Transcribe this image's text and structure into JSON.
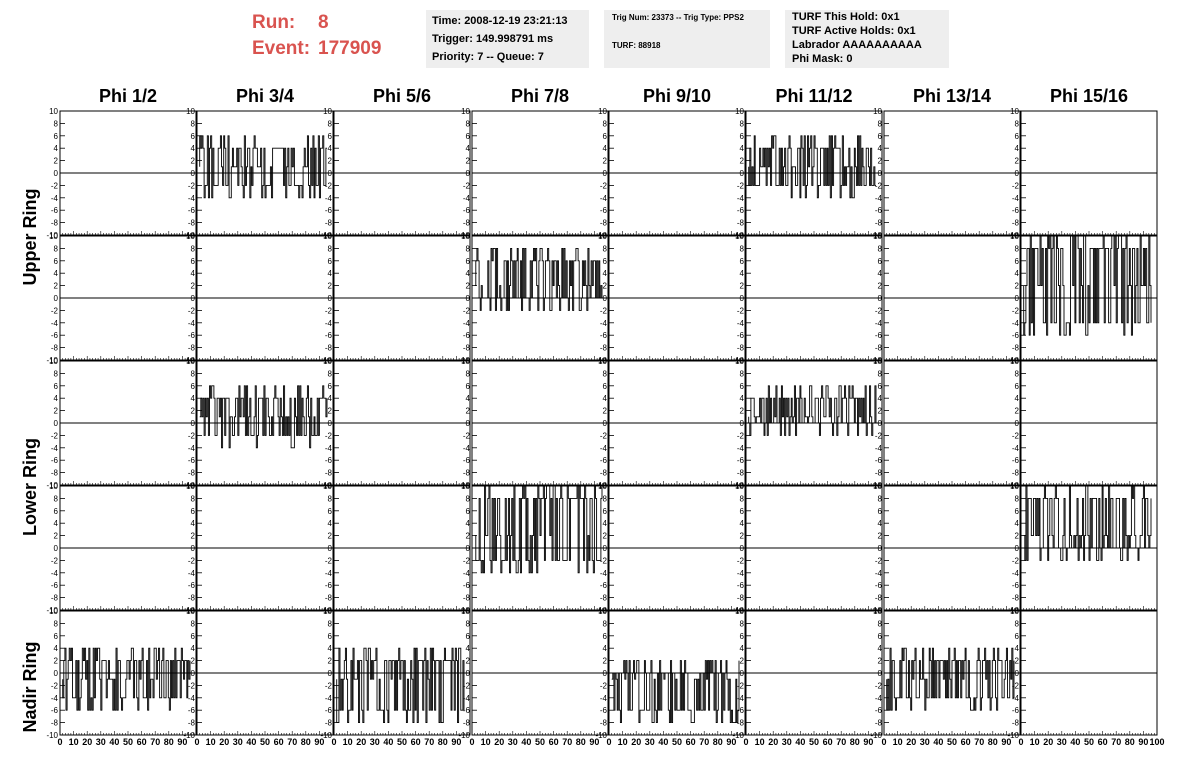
{
  "header": {
    "run_label": "Run:",
    "run_value": "8",
    "event_label": "Event:",
    "event_value": "177909",
    "run_color": "#d9534f"
  },
  "info_box_1": {
    "line1": "Time: 2008-12-19 23:21:13",
    "line2": "Trigger: 149.998791 ms",
    "line3": "Priority: 7 -- Queue: 7"
  },
  "info_box_2": {
    "line1": "Trig Num: 23373 -- Trig Type: PPS2",
    "line2": "TURF: 88918"
  },
  "info_box_3": {
    "line1": "TURF This Hold: 0x1",
    "line2": "TURF Active Holds: 0x1",
    "line3": "Labrador AAAAAAAAAA",
    "line4": "Phi Mask: 0"
  },
  "columns": [
    "Phi 1/2",
    "Phi 3/4",
    "Phi 5/6",
    "Phi 7/8",
    "Phi 9/10",
    "Phi 11/12",
    "Phi 13/14",
    "Phi 15/16"
  ],
  "ring_labels": {
    "upper": "Upper Ring",
    "lower": "Lower Ring",
    "nadir": "Nadir Ring"
  },
  "chart_data": {
    "type": "line",
    "xlim": [
      0,
      100
    ],
    "ylim": [
      -10,
      10
    ],
    "x_ticks": [
      0,
      10,
      20,
      30,
      40,
      50,
      60,
      70,
      80,
      90,
      100
    ],
    "y_ticks": [
      10,
      8,
      6,
      4,
      2,
      0,
      -2,
      -4,
      -6,
      -8,
      -10
    ],
    "zero_line": true,
    "rows": 5,
    "cols": 8,
    "active_panels": [
      {
        "row": 0,
        "col": 1,
        "min": -4,
        "max": 6,
        "baseline": 1,
        "seed": 3
      },
      {
        "row": 0,
        "col": 5,
        "min": -4,
        "max": 6,
        "baseline": 1,
        "seed": 7
      },
      {
        "row": 1,
        "col": 3,
        "min": -2,
        "max": 8,
        "baseline": 2,
        "seed": 11
      },
      {
        "row": 1,
        "col": 7,
        "min": -6,
        "max": 10,
        "baseline": 2,
        "seed": 13
      },
      {
        "row": 2,
        "col": 1,
        "min": -4,
        "max": 6,
        "baseline": 1,
        "seed": 17
      },
      {
        "row": 2,
        "col": 5,
        "min": -2,
        "max": 6,
        "baseline": 1,
        "seed": 19
      },
      {
        "row": 3,
        "col": 3,
        "min": -4,
        "max": 10,
        "baseline": 2,
        "seed": 23
      },
      {
        "row": 3,
        "col": 7,
        "min": -2,
        "max": 10,
        "baseline": 2,
        "seed": 29
      },
      {
        "row": 4,
        "col": 0,
        "min": -6,
        "max": 4,
        "baseline": -1,
        "seed": 31
      },
      {
        "row": 4,
        "col": 2,
        "min": -8,
        "max": 4,
        "baseline": -1,
        "seed": 37
      },
      {
        "row": 4,
        "col": 4,
        "min": -8,
        "max": 2,
        "baseline": -1,
        "seed": 41
      },
      {
        "row": 4,
        "col": 6,
        "min": -6,
        "max": 4,
        "baseline": -1,
        "seed": 43
      }
    ]
  }
}
